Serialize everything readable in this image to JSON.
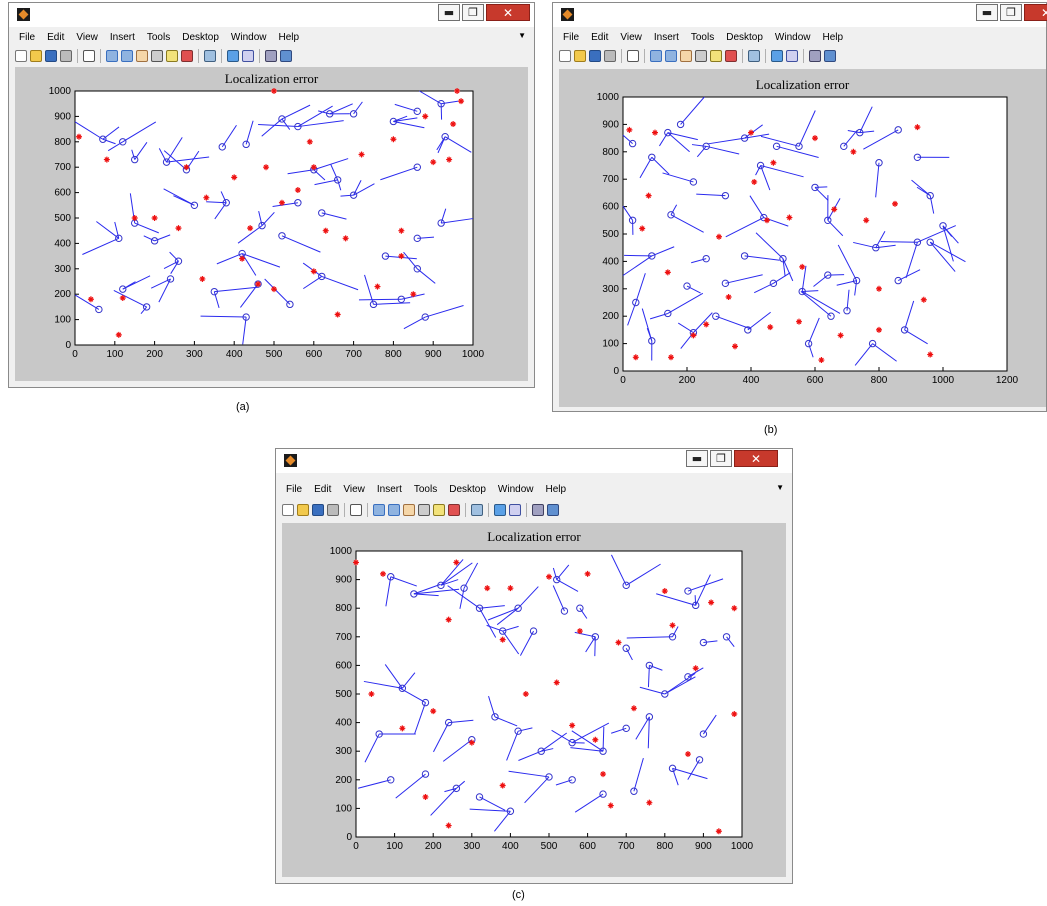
{
  "figures": [
    {
      "id": "a",
      "caption": "(a)",
      "plot_title": "Localization error",
      "menu": [
        "File",
        "Edit",
        "View",
        "Insert",
        "Tools",
        "Desktop",
        "Window",
        "Help"
      ],
      "x_ticks": [
        "0",
        "100",
        "200",
        "300",
        "400",
        "500",
        "600",
        "700",
        "800",
        "900",
        "1000"
      ],
      "y_ticks": [
        "0",
        "100",
        "200",
        "300",
        "400",
        "500",
        "600",
        "700",
        "800",
        "900",
        "1000"
      ]
    },
    {
      "id": "b",
      "caption": "(b)",
      "plot_title": "Localization error",
      "menu": [
        "File",
        "Edit",
        "View",
        "Insert",
        "Tools",
        "Desktop",
        "Window",
        "Help"
      ],
      "x_ticks": [
        "0",
        "200",
        "400",
        "600",
        "800",
        "1000",
        "1200"
      ],
      "y_ticks": [
        "0",
        "100",
        "200",
        "300",
        "400",
        "500",
        "600",
        "700",
        "800",
        "900",
        "1000"
      ]
    },
    {
      "id": "c",
      "caption": "(c)",
      "plot_title": "Localization error",
      "menu": [
        "File",
        "Edit",
        "View",
        "Insert",
        "Tools",
        "Desktop",
        "Window",
        "Help"
      ],
      "x_ticks": [
        "0",
        "100",
        "200",
        "300",
        "400",
        "500",
        "600",
        "700",
        "800",
        "900",
        "1000"
      ],
      "y_ticks": [
        "0",
        "100",
        "200",
        "300",
        "400",
        "500",
        "600",
        "700",
        "800",
        "900",
        "1000"
      ]
    }
  ],
  "window_buttons": {
    "minimize": "▬",
    "maximize": "❐",
    "close": "✕"
  },
  "colors": {
    "estimate_marker": "#3333cc",
    "error_line": "#2a2aee",
    "anchor_marker": "#ee1111",
    "figure_background": "#c8c8c8",
    "close_button": "#c7392c"
  },
  "chart_data": [
    {
      "type": "scatter",
      "panel": "a",
      "title": "Localization error",
      "xlim": [
        0,
        1000
      ],
      "ylim": [
        0,
        1000
      ],
      "series": [],
      "anchors": [
        [
          10,
          820
        ],
        [
          80,
          730
        ],
        [
          120,
          185
        ],
        [
          110,
          40
        ],
        [
          150,
          500
        ],
        [
          200,
          500
        ],
        [
          260,
          460
        ],
        [
          280,
          700
        ],
        [
          320,
          260
        ],
        [
          330,
          580
        ],
        [
          400,
          660
        ],
        [
          420,
          340
        ],
        [
          440,
          460
        ],
        [
          460,
          240
        ],
        [
          480,
          700
        ],
        [
          500,
          1000
        ],
        [
          520,
          560
        ],
        [
          560,
          610
        ],
        [
          590,
          800
        ],
        [
          600,
          290
        ],
        [
          600,
          700
        ],
        [
          630,
          450
        ],
        [
          660,
          120
        ],
        [
          680,
          420
        ],
        [
          720,
          750
        ],
        [
          760,
          230
        ],
        [
          800,
          810
        ],
        [
          820,
          450
        ],
        [
          820,
          350
        ],
        [
          850,
          200
        ],
        [
          880,
          900
        ],
        [
          900,
          720
        ],
        [
          940,
          730
        ],
        [
          950,
          870
        ],
        [
          960,
          1000
        ],
        [
          970,
          960
        ],
        [
          40,
          180
        ],
        [
          500,
          220
        ]
      ],
      "estimates": [
        [
          70,
          810
        ],
        [
          120,
          800
        ],
        [
          150,
          730
        ],
        [
          230,
          720
        ],
        [
          280,
          690
        ],
        [
          200,
          410
        ],
        [
          110,
          420
        ],
        [
          300,
          550
        ],
        [
          370,
          780
        ],
        [
          430,
          790
        ],
        [
          420,
          360
        ],
        [
          470,
          470
        ],
        [
          520,
          430
        ],
        [
          560,
          560
        ],
        [
          620,
          520
        ],
        [
          600,
          690
        ],
        [
          520,
          890
        ],
        [
          560,
          860
        ],
        [
          640,
          910
        ],
        [
          700,
          910
        ],
        [
          800,
          880
        ],
        [
          860,
          920
        ],
        [
          930,
          820
        ],
        [
          920,
          480
        ],
        [
          860,
          420
        ],
        [
          780,
          350
        ],
        [
          860,
          300
        ],
        [
          880,
          110
        ],
        [
          620,
          270
        ],
        [
          430,
          110
        ],
        [
          350,
          210
        ],
        [
          240,
          260
        ],
        [
          180,
          150
        ],
        [
          60,
          140
        ],
        [
          120,
          220
        ],
        [
          150,
          480
        ],
        [
          260,
          330
        ],
        [
          660,
          650
        ],
        [
          700,
          590
        ],
        [
          750,
          160
        ],
        [
          820,
          180
        ],
        [
          540,
          160
        ],
        [
          460,
          240
        ],
        [
          380,
          560
        ],
        [
          860,
          700
        ],
        [
          920,
          950
        ]
      ]
    },
    {
      "type": "scatter",
      "panel": "b",
      "title": "Localization error",
      "xlim": [
        0,
        1200
      ],
      "ylim": [
        0,
        1000
      ],
      "series": [],
      "anchors": [
        [
          20,
          880
        ],
        [
          40,
          50
        ],
        [
          60,
          520
        ],
        [
          80,
          640
        ],
        [
          100,
          870
        ],
        [
          140,
          360
        ],
        [
          150,
          50
        ],
        [
          220,
          130
        ],
        [
          260,
          170
        ],
        [
          300,
          490
        ],
        [
          330,
          270
        ],
        [
          350,
          90
        ],
        [
          400,
          870
        ],
        [
          410,
          690
        ],
        [
          450,
          550
        ],
        [
          470,
          760
        ],
        [
          520,
          560
        ],
        [
          550,
          180
        ],
        [
          560,
          380
        ],
        [
          600,
          850
        ],
        [
          660,
          590
        ],
        [
          680,
          130
        ],
        [
          720,
          800
        ],
        [
          760,
          550
        ],
        [
          800,
          300
        ],
        [
          850,
          610
        ],
        [
          920,
          890
        ],
        [
          940,
          260
        ],
        [
          960,
          60
        ],
        [
          800,
          150
        ],
        [
          460,
          160
        ],
        [
          620,
          40
        ]
      ],
      "estimates": [
        [
          30,
          830
        ],
        [
          90,
          780
        ],
        [
          140,
          870
        ],
        [
          180,
          900
        ],
        [
          220,
          690
        ],
        [
          260,
          820
        ],
        [
          320,
          640
        ],
        [
          380,
          850
        ],
        [
          430,
          750
        ],
        [
          480,
          820
        ],
        [
          550,
          820
        ],
        [
          600,
          670
        ],
        [
          640,
          550
        ],
        [
          690,
          820
        ],
        [
          740,
          870
        ],
        [
          800,
          760
        ],
        [
          860,
          880
        ],
        [
          920,
          780
        ],
        [
          960,
          640
        ],
        [
          920,
          470
        ],
        [
          860,
          330
        ],
        [
          790,
          450
        ],
        [
          730,
          330
        ],
        [
          650,
          200
        ],
        [
          560,
          290
        ],
        [
          500,
          410
        ],
        [
          440,
          560
        ],
        [
          380,
          420
        ],
        [
          320,
          320
        ],
        [
          260,
          410
        ],
        [
          200,
          310
        ],
        [
          140,
          210
        ],
        [
          90,
          110
        ],
        [
          40,
          250
        ],
        [
          30,
          550
        ],
        [
          90,
          420
        ],
        [
          150,
          570
        ],
        [
          220,
          140
        ],
        [
          290,
          200
        ],
        [
          390,
          150
        ],
        [
          470,
          320
        ],
        [
          580,
          100
        ],
        [
          700,
          220
        ],
        [
          780,
          100
        ],
        [
          880,
          150
        ],
        [
          960,
          470
        ],
        [
          1000,
          530
        ],
        [
          640,
          350
        ]
      ]
    },
    {
      "type": "scatter",
      "panel": "c",
      "title": "Localization error",
      "xlim": [
        0,
        1000
      ],
      "ylim": [
        0,
        1000
      ],
      "series": [],
      "anchors": [
        [
          0,
          960
        ],
        [
          40,
          500
        ],
        [
          70,
          920
        ],
        [
          120,
          380
        ],
        [
          180,
          140
        ],
        [
          200,
          440
        ],
        [
          240,
          760
        ],
        [
          260,
          960
        ],
        [
          300,
          330
        ],
        [
          340,
          870
        ],
        [
          380,
          690
        ],
        [
          400,
          870
        ],
        [
          440,
          500
        ],
        [
          500,
          910
        ],
        [
          520,
          540
        ],
        [
          560,
          390
        ],
        [
          580,
          720
        ],
        [
          600,
          920
        ],
        [
          620,
          340
        ],
        [
          660,
          110
        ],
        [
          680,
          680
        ],
        [
          720,
          450
        ],
        [
          760,
          120
        ],
        [
          800,
          860
        ],
        [
          820,
          740
        ],
        [
          860,
          290
        ],
        [
          880,
          590
        ],
        [
          920,
          820
        ],
        [
          940,
          20
        ],
        [
          980,
          430
        ],
        [
          980,
          800
        ],
        [
          240,
          40
        ],
        [
          380,
          180
        ],
        [
          640,
          220
        ]
      ],
      "estimates": [
        [
          90,
          910
        ],
        [
          150,
          850
        ],
        [
          220,
          880
        ],
        [
          280,
          870
        ],
        [
          320,
          800
        ],
        [
          380,
          720
        ],
        [
          420,
          800
        ],
        [
          460,
          720
        ],
        [
          540,
          790
        ],
        [
          580,
          800
        ],
        [
          620,
          700
        ],
        [
          700,
          660
        ],
        [
          760,
          600
        ],
        [
          820,
          700
        ],
        [
          880,
          810
        ],
        [
          900,
          680
        ],
        [
          860,
          560
        ],
        [
          800,
          500
        ],
        [
          760,
          420
        ],
        [
          700,
          380
        ],
        [
          640,
          300
        ],
        [
          560,
          330
        ],
        [
          480,
          300
        ],
        [
          420,
          370
        ],
        [
          360,
          420
        ],
        [
          300,
          340
        ],
        [
          240,
          400
        ],
        [
          180,
          470
        ],
        [
          120,
          520
        ],
        [
          60,
          360
        ],
        [
          90,
          200
        ],
        [
          180,
          220
        ],
        [
          260,
          170
        ],
        [
          320,
          140
        ],
        [
          400,
          90
        ],
        [
          500,
          210
        ],
        [
          560,
          200
        ],
        [
          640,
          150
        ],
        [
          720,
          160
        ],
        [
          820,
          240
        ],
        [
          890,
          270
        ],
        [
          900,
          360
        ],
        [
          960,
          700
        ],
        [
          860,
          860
        ],
        [
          700,
          880
        ],
        [
          520,
          900
        ]
      ]
    }
  ]
}
